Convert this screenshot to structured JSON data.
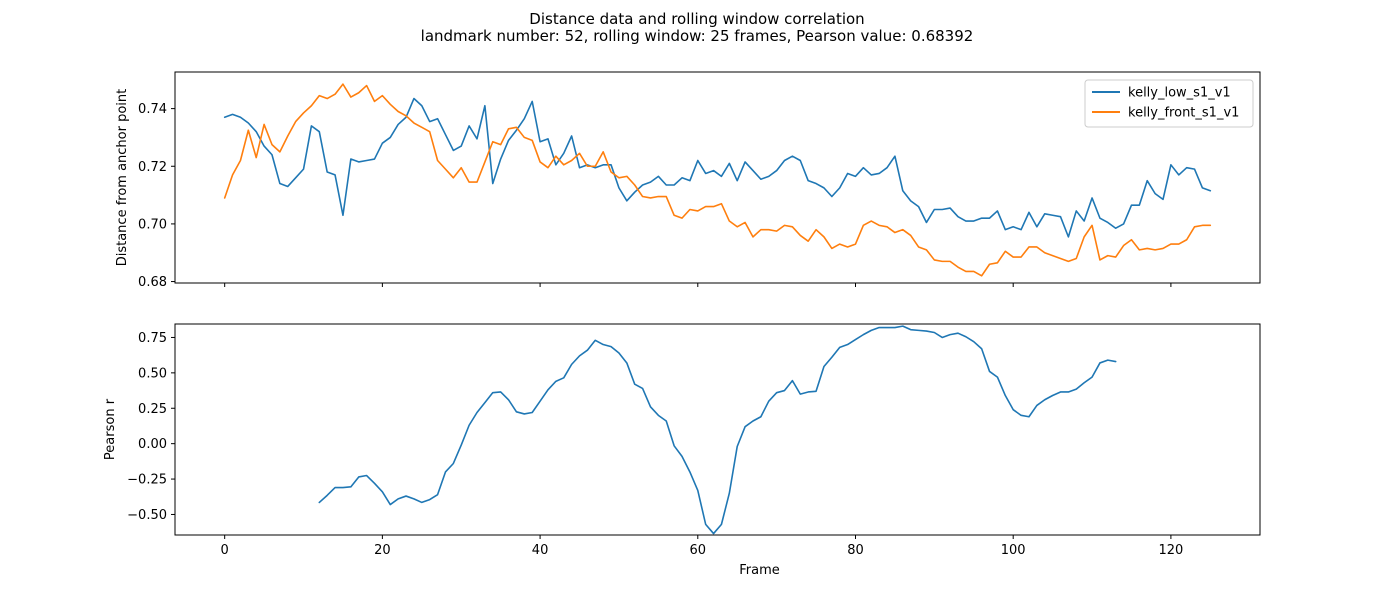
{
  "chart_data": [
    {
      "type": "line",
      "title": "Distance data and rolling window correlation",
      "subtitle": "landmark number: 52, rolling window: 25 frames, Pearson value: 0.68392",
      "xlabel": "",
      "ylabel": "Distance from anchor point",
      "xlim": [
        -6.3,
        131.3
      ],
      "ylim": [
        0.6795,
        0.7527
      ],
      "xticks": [
        0,
        20,
        40,
        60,
        80,
        100,
        120
      ],
      "yticks": [
        0.68,
        0.7,
        0.72,
        0.74
      ],
      "ytick_labels": [
        "0.68",
        "0.70",
        "0.72",
        "0.74"
      ],
      "legend": {
        "position": "top-right"
      },
      "series": [
        {
          "name": "kelly_low_s1_v1",
          "color": "#1f77b4",
          "x_start": 0,
          "values": [
            0.737,
            0.738,
            0.737,
            0.735,
            0.732,
            0.727,
            0.724,
            0.714,
            0.713,
            0.716,
            0.719,
            0.734,
            0.732,
            0.718,
            0.717,
            0.703,
            0.7225,
            0.7215,
            0.722,
            0.7225,
            0.728,
            0.73,
            0.7345,
            0.737,
            0.7435,
            0.741,
            0.7355,
            0.7365,
            0.731,
            0.7255,
            0.727,
            0.734,
            0.7295,
            0.741,
            0.714,
            0.7225,
            0.729,
            0.7325,
            0.7365,
            0.7425,
            0.7285,
            0.7295,
            0.7205,
            0.7245,
            0.7305,
            0.7195,
            0.7205,
            0.7195,
            0.7205,
            0.7205,
            0.7125,
            0.708,
            0.711,
            0.7135,
            0.7145,
            0.7165,
            0.7135,
            0.7135,
            0.716,
            0.715,
            0.722,
            0.7175,
            0.7185,
            0.7165,
            0.721,
            0.715,
            0.7215,
            0.7185,
            0.7155,
            0.7165,
            0.7185,
            0.722,
            0.7235,
            0.722,
            0.715,
            0.714,
            0.7125,
            0.7095,
            0.7125,
            0.7175,
            0.7165,
            0.7195,
            0.717,
            0.7175,
            0.7195,
            0.7235,
            0.7115,
            0.708,
            0.706,
            0.7005,
            0.705,
            0.705,
            0.7055,
            0.7025,
            0.701,
            0.701,
            0.702,
            0.702,
            0.7045,
            0.698,
            0.699,
            0.698,
            0.704,
            0.699,
            0.7035,
            0.703,
            0.7025,
            0.6955,
            0.7045,
            0.701,
            0.709,
            0.702,
            0.7005,
            0.6985,
            0.7,
            0.7065,
            0.7065,
            0.715,
            0.7105,
            0.7085,
            0.7205,
            0.717,
            0.7195,
            0.719,
            0.7125,
            0.7115
          ]
        },
        {
          "name": "kelly_front_s1_v1",
          "color": "#ff7f0e",
          "x_start": 0,
          "values": [
            0.709,
            0.717,
            0.722,
            0.7325,
            0.723,
            0.7345,
            0.7275,
            0.725,
            0.7305,
            0.7355,
            0.7385,
            0.741,
            0.7445,
            0.7435,
            0.745,
            0.7485,
            0.744,
            0.7455,
            0.748,
            0.7425,
            0.7445,
            0.7415,
            0.739,
            0.7375,
            0.735,
            0.7335,
            0.732,
            0.722,
            0.719,
            0.716,
            0.7195,
            0.7145,
            0.7145,
            0.7215,
            0.7285,
            0.7275,
            0.733,
            0.7335,
            0.73,
            0.729,
            0.7215,
            0.7195,
            0.7235,
            0.7205,
            0.722,
            0.7245,
            0.72,
            0.72,
            0.725,
            0.718,
            0.716,
            0.7165,
            0.7135,
            0.7095,
            0.709,
            0.7095,
            0.7095,
            0.703,
            0.702,
            0.705,
            0.7045,
            0.706,
            0.706,
            0.707,
            0.701,
            0.699,
            0.7005,
            0.6955,
            0.698,
            0.698,
            0.6975,
            0.6995,
            0.699,
            0.696,
            0.694,
            0.698,
            0.6955,
            0.6915,
            0.693,
            0.692,
            0.693,
            0.6995,
            0.701,
            0.6995,
            0.699,
            0.697,
            0.698,
            0.696,
            0.692,
            0.691,
            0.6875,
            0.687,
            0.687,
            0.685,
            0.6835,
            0.6835,
            0.682,
            0.686,
            0.6865,
            0.6905,
            0.6885,
            0.6885,
            0.692,
            0.692,
            0.69,
            0.689,
            0.688,
            0.687,
            0.688,
            0.6955,
            0.6995,
            0.6875,
            0.689,
            0.6885,
            0.6925,
            0.6945,
            0.691,
            0.6915,
            0.691,
            0.6915,
            0.693,
            0.693,
            0.6945,
            0.699,
            0.6995,
            0.6995
          ]
        }
      ]
    },
    {
      "type": "line",
      "title": "",
      "xlabel": "Frame",
      "ylabel": "Pearson r",
      "xlim": [
        -6.3,
        131.3
      ],
      "ylim": [
        -0.645,
        0.845
      ],
      "xticks": [
        0,
        20,
        40,
        60,
        80,
        100,
        120
      ],
      "yticks": [
        -0.5,
        -0.25,
        0.0,
        0.25,
        0.5,
        0.75
      ],
      "ytick_labels": [
        "−0.50",
        "−0.25",
        "0.00",
        "0.25",
        "0.50",
        "0.75"
      ],
      "series": [
        {
          "name": "",
          "color": "#1f77b4",
          "x_start": 12,
          "values": [
            -0.415,
            -0.365,
            -0.31,
            -0.31,
            -0.305,
            -0.235,
            -0.225,
            -0.28,
            -0.34,
            -0.43,
            -0.39,
            -0.37,
            -0.39,
            -0.415,
            -0.395,
            -0.36,
            -0.2,
            -0.14,
            -0.01,
            0.13,
            0.22,
            0.29,
            0.36,
            0.365,
            0.31,
            0.225,
            0.21,
            0.22,
            0.3,
            0.38,
            0.44,
            0.465,
            0.56,
            0.62,
            0.66,
            0.73,
            0.7,
            0.685,
            0.64,
            0.57,
            0.42,
            0.39,
            0.26,
            0.2,
            0.16,
            -0.015,
            -0.09,
            -0.2,
            -0.33,
            -0.57,
            -0.635,
            -0.57,
            -0.35,
            -0.02,
            0.12,
            0.16,
            0.19,
            0.3,
            0.36,
            0.375,
            0.445,
            0.35,
            0.365,
            0.37,
            0.545,
            0.61,
            0.68,
            0.7,
            0.735,
            0.77,
            0.8,
            0.82,
            0.82,
            0.82,
            0.83,
            0.805,
            0.8,
            0.795,
            0.785,
            0.75,
            0.77,
            0.78,
            0.755,
            0.72,
            0.67,
            0.51,
            0.47,
            0.34,
            0.24,
            0.2,
            0.19,
            0.27,
            0.31,
            0.34,
            0.365,
            0.365,
            0.385,
            0.43,
            0.47,
            0.57,
            0.59,
            0.58
          ]
        }
      ]
    }
  ]
}
